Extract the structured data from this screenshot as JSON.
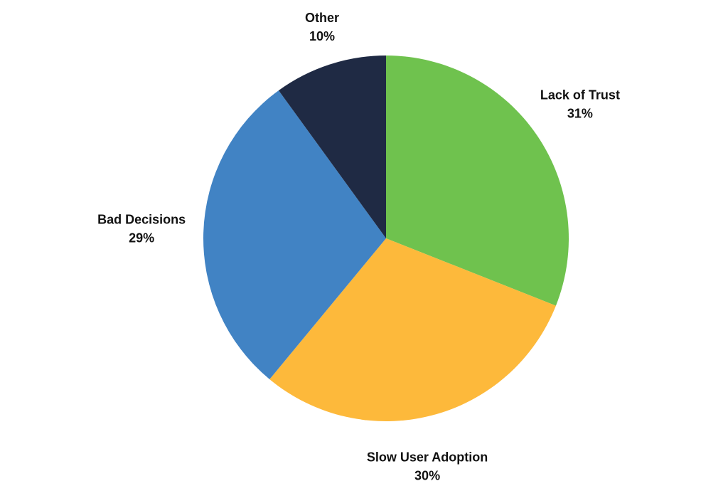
{
  "chart_data": {
    "type": "pie",
    "title": "",
    "start_angle_deg": 0,
    "direction": "clockwise",
    "slices": [
      {
        "name": "Lack of Trust",
        "value": 31,
        "label_pct": "31%",
        "color": "#6FC24E"
      },
      {
        "name": "Slow User Adoption",
        "value": 30,
        "label_pct": "30%",
        "color": "#FDB93B"
      },
      {
        "name": "Bad Decisions",
        "value": 29,
        "label_pct": "29%",
        "color": "#4183C4"
      },
      {
        "name": "Other",
        "value": 10,
        "label_pct": "10%",
        "color": "#1F2A44"
      }
    ],
    "legend": "none",
    "labels": "outside"
  }
}
